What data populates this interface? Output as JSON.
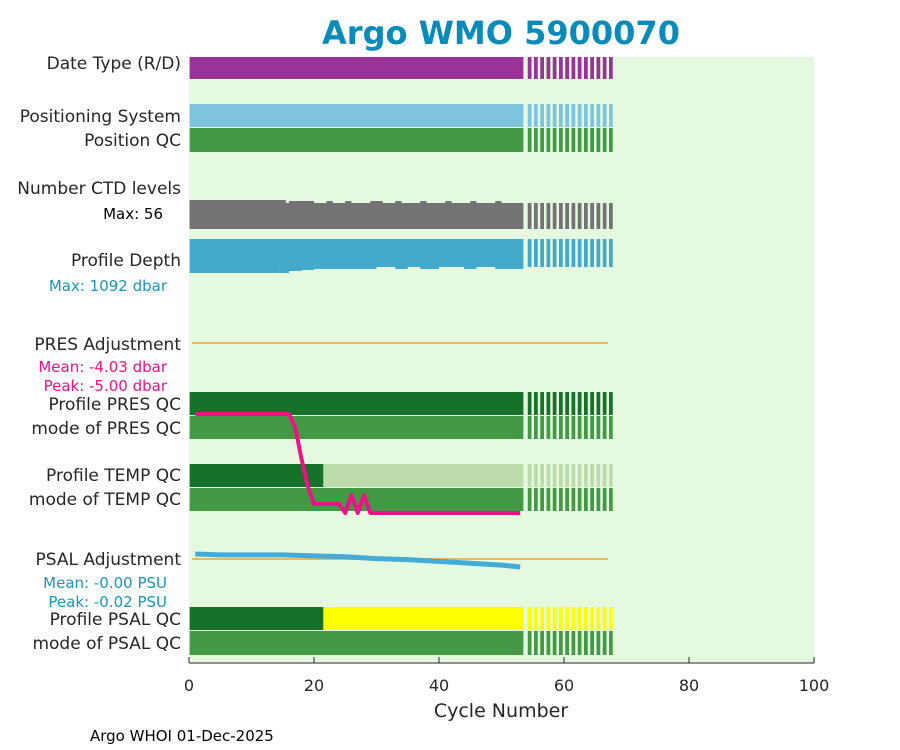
{
  "chart_data": {
    "type": "bar",
    "title": "Argo WMO 5900070",
    "xlabel": "Cycle Number",
    "xlim": [
      0,
      100
    ],
    "x_ticks": [
      0,
      20,
      40,
      60,
      80,
      100
    ],
    "footer": "Argo WHOI 01-Dec-2025",
    "colors": {
      "title": "#0a8ab8",
      "background": "#e5f9e0",
      "date_type": "#993399",
      "positioning": "#7ec4de",
      "qc_good": "#449944",
      "qc_good_dark": "#157228",
      "qc_light": "#bbdbaa",
      "qc_yellow": "#ffff00",
      "ctd": "#737373",
      "depth": "#44aacc",
      "adjustment_line": "#f2b84d",
      "pres_adjustment": "#ee1188",
      "psal_adjustment": "#44aad6",
      "pink_text": "#ee1188",
      "blue_text": "#1a94bb"
    },
    "solid_until_cycle": 53.5,
    "dashed_until_cycle": 67.5,
    "dash_cycle_width": 0.6,
    "rows": [
      {
        "key": "date_type",
        "label": "Date Type (R/D)"
      },
      {
        "key": "positioning",
        "label": "Positioning System"
      },
      {
        "key": "position_qc",
        "label": "Position QC"
      },
      {
        "key": "ctd",
        "label": "Number CTD levels",
        "stat": "Max: 56"
      },
      {
        "key": "depth",
        "label": "Profile Depth",
        "stat": "Max: 1092 dbar"
      },
      {
        "key": "pres_adj",
        "label": "PRES Adjustment",
        "stat1": "Mean: -4.03 dbar",
        "stat2": "Peak: -5.00 dbar"
      },
      {
        "key": "pres_qc",
        "label": "Profile PRES QC"
      },
      {
        "key": "pres_mode",
        "label": "mode of PRES QC"
      },
      {
        "key": "temp_qc",
        "label": "Profile TEMP QC",
        "dark_until_cycle": 21.5
      },
      {
        "key": "temp_mode",
        "label": "mode of TEMP QC"
      },
      {
        "key": "psal_adj",
        "label": "PSAL Adjustment",
        "stat1": "Mean: -0.00 PSU",
        "stat2": "Peak: -0.02 PSU"
      },
      {
        "key": "psal_qc",
        "label": "Profile PSAL QC",
        "dark_until_cycle": 21.5
      },
      {
        "key": "psal_mode",
        "label": "mode of PSAL QC"
      }
    ],
    "adjustment_line_until_cycle": 67,
    "pres_adjustment_series": {
      "cycles": [
        1,
        16,
        17,
        18,
        19,
        20,
        21,
        24,
        25,
        26,
        27,
        28,
        29,
        30,
        53
      ],
      "values": [
        -4.0,
        -4.0,
        -4.15,
        -4.5,
        -4.8,
        -5.0,
        -5.0,
        -5.0,
        -5.1,
        -4.9,
        -5.1,
        -4.9,
        -5.1,
        -5.1,
        -5.1
      ]
    },
    "psal_adjustment_series": {
      "cycles": [
        1,
        5,
        10,
        15,
        20,
        25,
        30,
        35,
        40,
        45,
        50,
        53
      ],
      "values": [
        0.0,
        -0.001,
        -0.001,
        -0.001,
        -0.002,
        -0.003,
        -0.005,
        -0.006,
        -0.008,
        -0.01,
        -0.012,
        -0.014
      ]
    }
  }
}
